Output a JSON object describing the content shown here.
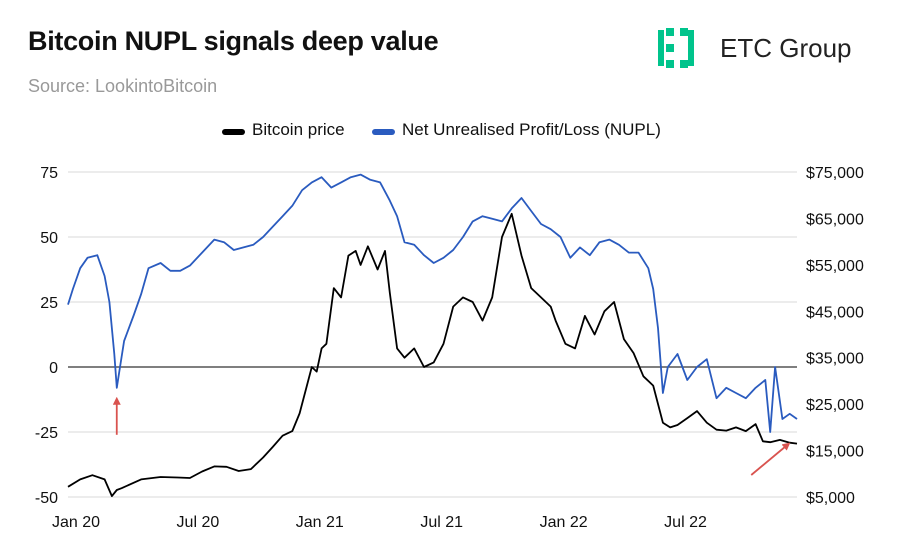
{
  "header": {
    "title": "Bitcoin NUPL signals deep value",
    "source": "Source: LookintoBitcoin"
  },
  "logo": {
    "text": "ETC Group",
    "color": "#00c48c"
  },
  "legend": {
    "items": [
      {
        "label": "Bitcoin price",
        "color": "#000000"
      },
      {
        "label": "Net Unrealised Profit/Loss (NUPL)",
        "color": "#2a5bbf"
      }
    ]
  },
  "chart_data": {
    "type": "line",
    "title": "Bitcoin NUPL signals deep value",
    "x_range": [
      2020.0,
      2022.99
    ],
    "x_ticks": [
      {
        "label": "Jan 20",
        "x": 2020.0
      },
      {
        "label": "Jul 20",
        "x": 2020.5
      },
      {
        "label": "Jan 21",
        "x": 2021.0
      },
      {
        "label": "Jul 21",
        "x": 2021.5
      },
      {
        "label": "Jan 22",
        "x": 2022.0
      },
      {
        "label": "Jul 22",
        "x": 2022.5
      }
    ],
    "y_left": {
      "range": [
        -50,
        75
      ],
      "ticks": [
        "75",
        "50",
        "25",
        "0",
        "-25",
        "-50"
      ],
      "values": [
        75,
        50,
        25,
        0,
        -25,
        -50
      ]
    },
    "y_right": {
      "range": [
        5000,
        75000
      ],
      "ticks": [
        "$75,000",
        "$65,000",
        "$55,000",
        "$45,000",
        "$35,000",
        "$25,000",
        "$15,000",
        "$5,000"
      ],
      "values": [
        75000,
        65000,
        55000,
        45000,
        35000,
        25000,
        15000,
        5000
      ]
    },
    "series": [
      {
        "name": "Bitcoin price",
        "axis": "right",
        "color": "#000000",
        "x": [
          2020.0,
          2020.05,
          2020.1,
          2020.15,
          2020.18,
          2020.2,
          2020.22,
          2020.3,
          2020.38,
          2020.45,
          2020.5,
          2020.55,
          2020.6,
          2020.65,
          2020.7,
          2020.75,
          2020.8,
          2020.84,
          2020.88,
          2020.92,
          2020.95,
          2020.98,
          2021.0,
          2021.02,
          2021.04,
          2021.06,
          2021.09,
          2021.12,
          2021.15,
          2021.18,
          2021.2,
          2021.23,
          2021.27,
          2021.3,
          2021.32,
          2021.35,
          2021.38,
          2021.42,
          2021.46,
          2021.5,
          2021.54,
          2021.58,
          2021.62,
          2021.66,
          2021.7,
          2021.74,
          2021.78,
          2021.82,
          2021.86,
          2021.9,
          2021.94,
          2021.98,
          2022.0,
          2022.04,
          2022.08,
          2022.12,
          2022.16,
          2022.2,
          2022.24,
          2022.28,
          2022.32,
          2022.36,
          2022.4,
          2022.44,
          2022.47,
          2022.5,
          2022.54,
          2022.58,
          2022.62,
          2022.66,
          2022.7,
          2022.74,
          2022.78,
          2022.82,
          2022.85,
          2022.88,
          2022.92,
          2022.96,
          2022.99
        ],
        "values": [
          7200,
          8800,
          9700,
          8800,
          5200,
          6500,
          6900,
          8800,
          9300,
          9200,
          9100,
          10500,
          11600,
          11500,
          10600,
          11000,
          13500,
          15800,
          18200,
          19200,
          23000,
          29000,
          33000,
          32000,
          37000,
          38000,
          50000,
          48000,
          57000,
          58000,
          55000,
          59000,
          54000,
          58000,
          49000,
          37000,
          35000,
          37000,
          33000,
          34000,
          38000,
          46000,
          48000,
          47000,
          43000,
          48000,
          61000,
          66000,
          57000,
          50000,
          48000,
          46000,
          43000,
          38000,
          37000,
          44000,
          40000,
          45000,
          47000,
          39000,
          36000,
          31000,
          29000,
          21000,
          20000,
          20500,
          22000,
          23500,
          21000,
          19500,
          19300,
          20000,
          19200,
          20700,
          17000,
          16800,
          17300,
          16700,
          16500
        ]
      },
      {
        "name": "Net Unrealised Profit/Loss (NUPL)",
        "axis": "left",
        "color": "#2a5bbf",
        "x": [
          2020.0,
          2020.02,
          2020.05,
          2020.08,
          2020.12,
          2020.15,
          2020.17,
          2020.19,
          2020.2,
          2020.21,
          2020.23,
          2020.27,
          2020.3,
          2020.33,
          2020.38,
          2020.42,
          2020.46,
          2020.5,
          2020.55,
          2020.6,
          2020.64,
          2020.68,
          2020.72,
          2020.76,
          2020.8,
          2020.84,
          2020.88,
          2020.92,
          2020.96,
          2021.0,
          2021.04,
          2021.08,
          2021.12,
          2021.16,
          2021.2,
          2021.24,
          2021.28,
          2021.32,
          2021.35,
          2021.38,
          2021.42,
          2021.46,
          2021.5,
          2021.54,
          2021.58,
          2021.62,
          2021.66,
          2021.7,
          2021.74,
          2021.78,
          2021.82,
          2021.86,
          2021.9,
          2021.94,
          2021.98,
          2022.02,
          2022.06,
          2022.1,
          2022.14,
          2022.18,
          2022.22,
          2022.26,
          2022.3,
          2022.34,
          2022.38,
          2022.4,
          2022.42,
          2022.44,
          2022.46,
          2022.5,
          2022.54,
          2022.58,
          2022.62,
          2022.66,
          2022.7,
          2022.74,
          2022.78,
          2022.82,
          2022.86,
          2022.88,
          2022.9,
          2022.93,
          2022.96,
          2022.99
        ],
        "values": [
          24,
          30,
          38,
          42,
          43,
          35,
          25,
          5,
          -8,
          -2,
          10,
          20,
          28,
          38,
          40,
          37,
          37,
          39,
          44,
          49,
          48,
          45,
          46,
          47,
          50,
          54,
          58,
          62,
          68,
          71,
          73,
          69,
          71,
          73,
          74,
          72,
          71,
          64,
          58,
          48,
          47,
          43,
          40,
          42,
          45,
          50,
          56,
          58,
          57,
          56,
          61,
          65,
          60,
          55,
          53,
          50,
          42,
          46,
          43,
          48,
          49,
          47,
          44,
          44,
          38,
          30,
          15,
          -10,
          0,
          5,
          -5,
          0,
          3,
          -12,
          -8,
          -10,
          -12,
          -8,
          -5,
          -25,
          0,
          -20,
          -18,
          -20
        ]
      }
    ],
    "annotations": [
      {
        "type": "arrow",
        "color": "#d9534f",
        "target_x": 2020.2,
        "target_y": -13,
        "direction": "up"
      },
      {
        "type": "arrow",
        "color": "#d9534f",
        "target_x": 2022.95,
        "target_y": -30,
        "direction": "up-right"
      }
    ]
  }
}
